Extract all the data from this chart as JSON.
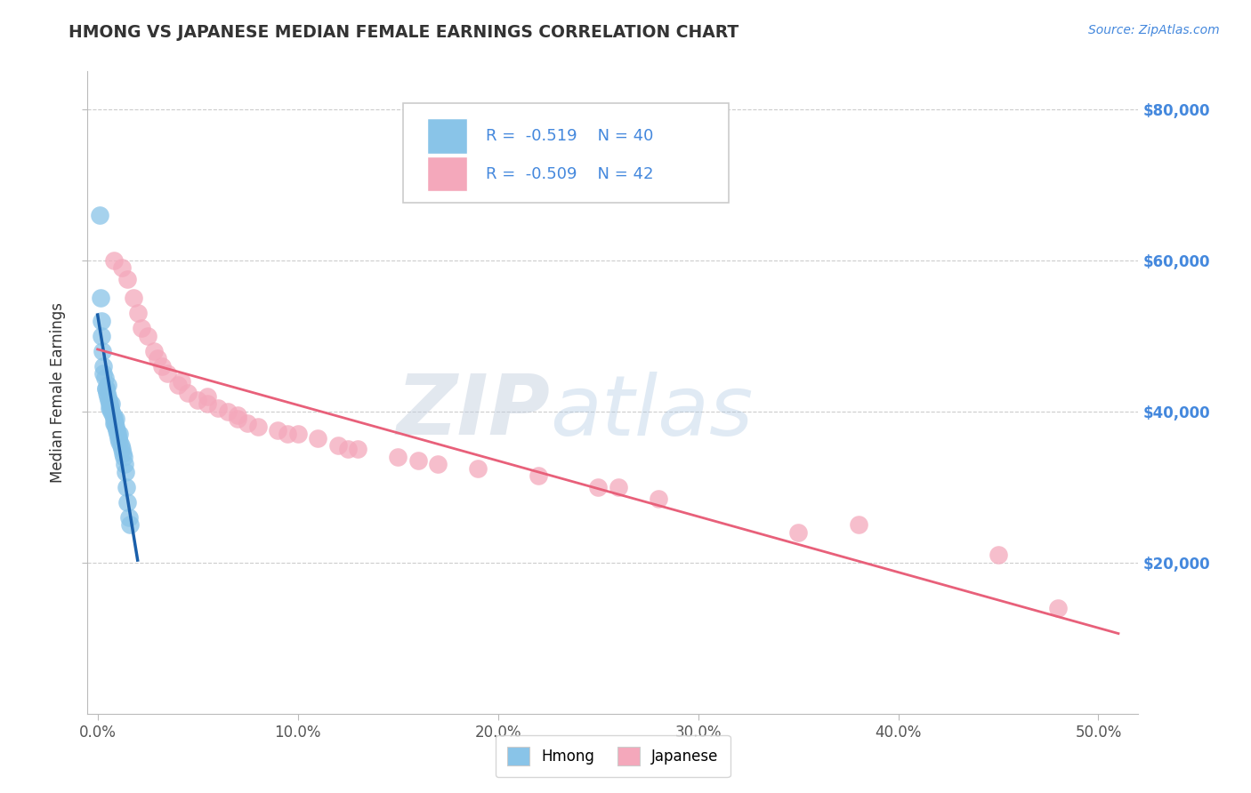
{
  "title": "HMONG VS JAPANESE MEDIAN FEMALE EARNINGS CORRELATION CHART",
  "source": "Source: ZipAtlas.com",
  "xlabel_ticks": [
    "0.0%",
    "10.0%",
    "20.0%",
    "30.0%",
    "40.0%",
    "50.0%"
  ],
  "xlabel_values": [
    0.0,
    10.0,
    20.0,
    30.0,
    40.0,
    50.0
  ],
  "ylabel_ticks": [
    "$20,000",
    "$40,000",
    "$60,000",
    "$80,000"
  ],
  "ylabel_values": [
    20000,
    40000,
    60000,
    80000
  ],
  "ylabel": "Median Female Earnings",
  "xmin": -0.5,
  "xmax": 52.0,
  "ymin": 0,
  "ymax": 85000,
  "hmong_R": -0.519,
  "hmong_N": 40,
  "japanese_R": -0.509,
  "japanese_N": 42,
  "hmong_color": "#89c4e8",
  "japanese_color": "#f4a8bb",
  "hmong_line_color": "#1a5faa",
  "japanese_line_color": "#e8607a",
  "hmong_scatter_x": [
    0.1,
    0.15,
    0.2,
    0.25,
    0.3,
    0.35,
    0.4,
    0.45,
    0.5,
    0.55,
    0.6,
    0.65,
    0.7,
    0.75,
    0.8,
    0.85,
    0.9,
    0.95,
    1.0,
    1.05,
    1.1,
    1.15,
    1.2,
    1.25,
    1.3,
    1.35,
    1.4,
    1.45,
    1.5,
    1.55,
    1.6,
    0.3,
    0.5,
    0.7,
    0.9,
    1.1,
    0.2,
    0.4,
    0.6,
    0.8
  ],
  "hmong_scatter_y": [
    66000,
    55000,
    52000,
    48000,
    46000,
    44500,
    43000,
    42500,
    42000,
    41500,
    41000,
    40500,
    40000,
    39500,
    39000,
    38500,
    38000,
    37500,
    37000,
    36500,
    36000,
    35500,
    35000,
    34500,
    34000,
    33000,
    32000,
    30000,
    28000,
    26000,
    25000,
    45000,
    43500,
    41000,
    39000,
    37000,
    50000,
    43000,
    40500,
    38500
  ],
  "japanese_scatter_x": [
    0.8,
    1.2,
    1.5,
    1.8,
    2.0,
    2.2,
    2.5,
    2.8,
    3.0,
    3.5,
    4.0,
    4.5,
    5.0,
    5.5,
    6.0,
    6.5,
    7.0,
    7.5,
    8.0,
    9.0,
    10.0,
    11.0,
    12.0,
    13.0,
    15.0,
    17.0,
    19.0,
    22.0,
    25.0,
    28.0,
    3.2,
    4.2,
    5.5,
    7.0,
    9.5,
    12.5,
    16.0,
    35.0,
    45.0,
    48.0,
    38.0,
    26.0
  ],
  "japanese_scatter_y": [
    60000,
    59000,
    57500,
    55000,
    53000,
    51000,
    50000,
    48000,
    47000,
    45000,
    43500,
    42500,
    41500,
    41000,
    40500,
    40000,
    39500,
    38500,
    38000,
    37500,
    37000,
    36500,
    35500,
    35000,
    34000,
    33000,
    32500,
    31500,
    30000,
    28500,
    46000,
    44000,
    42000,
    39000,
    37000,
    35000,
    33500,
    24000,
    21000,
    14000,
    25000,
    30000
  ],
  "watermark_zip": "ZIP",
  "watermark_atlas": "atlas",
  "background_color": "#ffffff",
  "grid_color": "#cccccc"
}
